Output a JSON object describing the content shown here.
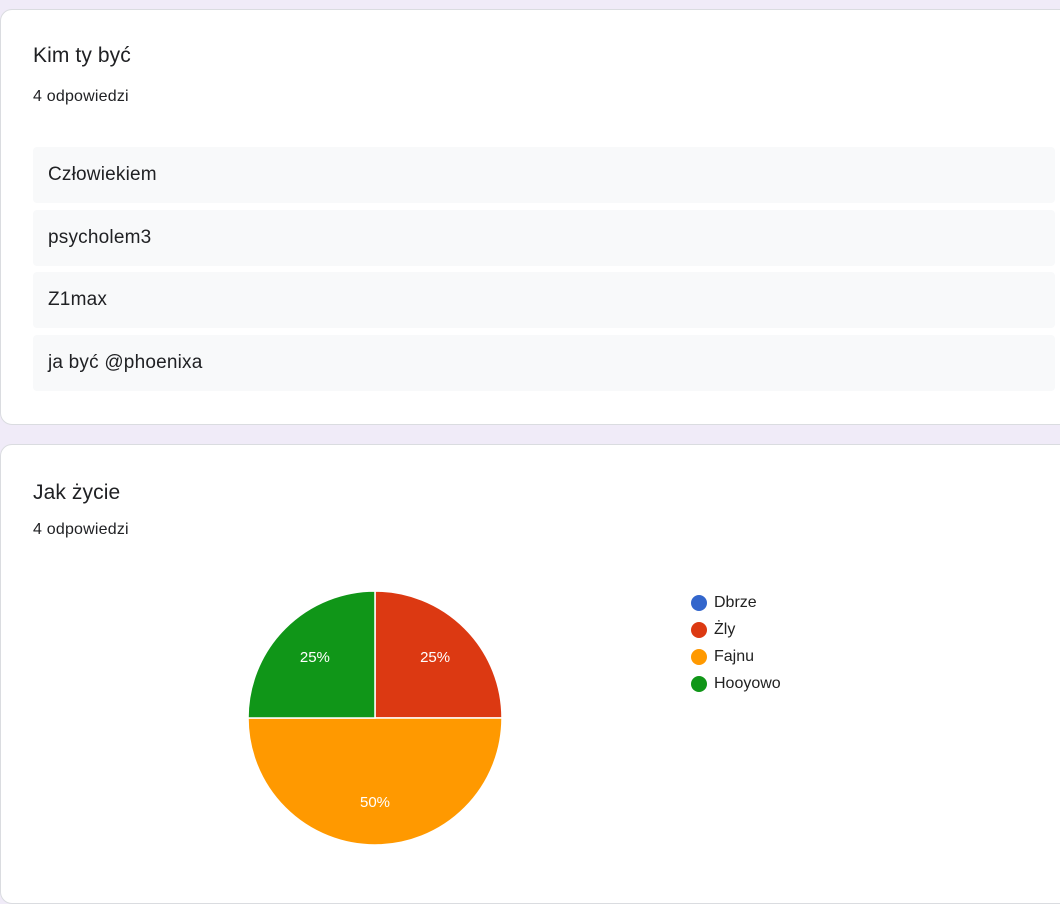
{
  "questions": [
    {
      "title": "Kim ty być",
      "responses": "4 odpowiedzi",
      "answers": [
        "Człowiekiem",
        "psycholem3",
        "Z1max",
        "ja być @phoenixa"
      ]
    },
    {
      "title": "Jak życie",
      "responses": "4 odpowiedzi"
    }
  ],
  "chart_data": {
    "type": "pie",
    "title": "",
    "legend_position": "right",
    "slices": [
      {
        "label": "Dbrze",
        "value": 0,
        "percent_label": "",
        "color": "#3366cc"
      },
      {
        "label": "Żly",
        "value": 25,
        "percent_label": "25%",
        "color": "#dc3912"
      },
      {
        "label": "Fajnu",
        "value": 50,
        "percent_label": "50%",
        "color": "#ff9900"
      },
      {
        "label": "Hooyowo",
        "value": 25,
        "percent_label": "25%",
        "color": "#109618"
      }
    ]
  }
}
